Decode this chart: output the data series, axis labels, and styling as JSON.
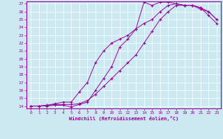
{
  "xlabel": "Windchill (Refroidissement éolien,°C)",
  "bg_color": "#cce8f0",
  "line_color": "#990099",
  "xlim": [
    -0.5,
    23.5
  ],
  "ylim": [
    13.7,
    27.3
  ],
  "xticks": [
    0,
    1,
    2,
    3,
    4,
    5,
    6,
    7,
    8,
    9,
    10,
    11,
    12,
    13,
    14,
    15,
    16,
    17,
    18,
    19,
    20,
    21,
    22,
    23
  ],
  "yticks": [
    14,
    15,
    16,
    17,
    18,
    19,
    20,
    21,
    22,
    23,
    24,
    25,
    26,
    27
  ],
  "line1_x": [
    0,
    1,
    2,
    3,
    4,
    5,
    6,
    7,
    8,
    9,
    10,
    11,
    12,
    13,
    14,
    15,
    16,
    17,
    18,
    19,
    20,
    21,
    22,
    23
  ],
  "line1_y": [
    14,
    14,
    14.1,
    14.2,
    14.2,
    14.2,
    14.3,
    14.7,
    15.5,
    16.5,
    17.5,
    18.5,
    19.5,
    20.5,
    22.0,
    23.5,
    25.0,
    26.0,
    26.8,
    26.8,
    26.8,
    26.5,
    26.0,
    25.0
  ],
  "line2_x": [
    0,
    1,
    2,
    3,
    4,
    5,
    6,
    7,
    8,
    9,
    10,
    11,
    12,
    13,
    14,
    15,
    16,
    17,
    18,
    19,
    20,
    21,
    22,
    23
  ],
  "line2_y": [
    14,
    14,
    14.0,
    14.1,
    14.1,
    13.9,
    14.2,
    14.5,
    16.0,
    17.5,
    19.0,
    21.5,
    22.5,
    23.8,
    27.2,
    26.8,
    27.2,
    27.2,
    27.0,
    26.8,
    26.8,
    26.3,
    26.0,
    25.0
  ],
  "line3_x": [
    0,
    1,
    2,
    3,
    4,
    5,
    6,
    7,
    8,
    9,
    10,
    11,
    12,
    13,
    14,
    15,
    16,
    17,
    18,
    19,
    20,
    21,
    22,
    23
  ],
  "line3_y": [
    14,
    14,
    14.1,
    14.3,
    14.5,
    14.5,
    15.8,
    17.0,
    19.5,
    21.0,
    22.0,
    22.5,
    23.0,
    23.8,
    24.5,
    25.0,
    26.0,
    26.8,
    27.0,
    26.8,
    26.8,
    26.5,
    25.5,
    24.5
  ]
}
